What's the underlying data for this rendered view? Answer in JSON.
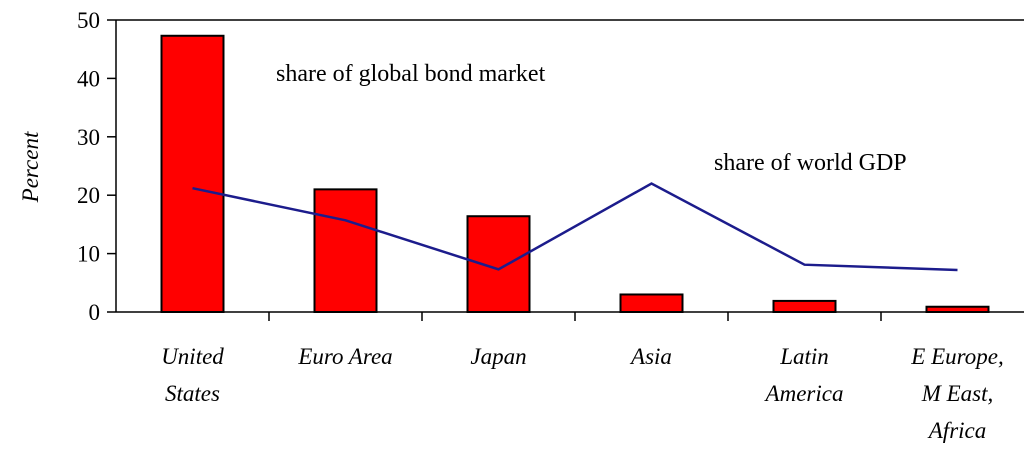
{
  "chart_data": {
    "type": "bar",
    "categories": [
      [
        "United",
        "States"
      ],
      [
        "Euro Area"
      ],
      [
        "Japan"
      ],
      [
        "Asia"
      ],
      [
        "Latin",
        "America"
      ],
      [
        "E Europe,",
        "M East,",
        "Africa"
      ]
    ],
    "series": [
      {
        "name": "share of global bond market",
        "type": "bar",
        "values": [
          47.3,
          21.0,
          16.4,
          3.0,
          1.9,
          0.9
        ],
        "color": "#ff0000"
      },
      {
        "name": "share of world GDP",
        "type": "line",
        "values": [
          21.2,
          15.7,
          7.3,
          22.0,
          8.1,
          7.2
        ],
        "color": "#1c1c8c"
      }
    ],
    "xlabel": "",
    "ylabel": "Percent",
    "ylim": [
      0,
      50
    ],
    "yticks": [
      0,
      10,
      20,
      30,
      40,
      50
    ],
    "grid": false,
    "annotations": [
      {
        "text": "share of global bond market",
        "series": 0
      },
      {
        "text": "share of world GDP",
        "series": 1
      }
    ]
  }
}
